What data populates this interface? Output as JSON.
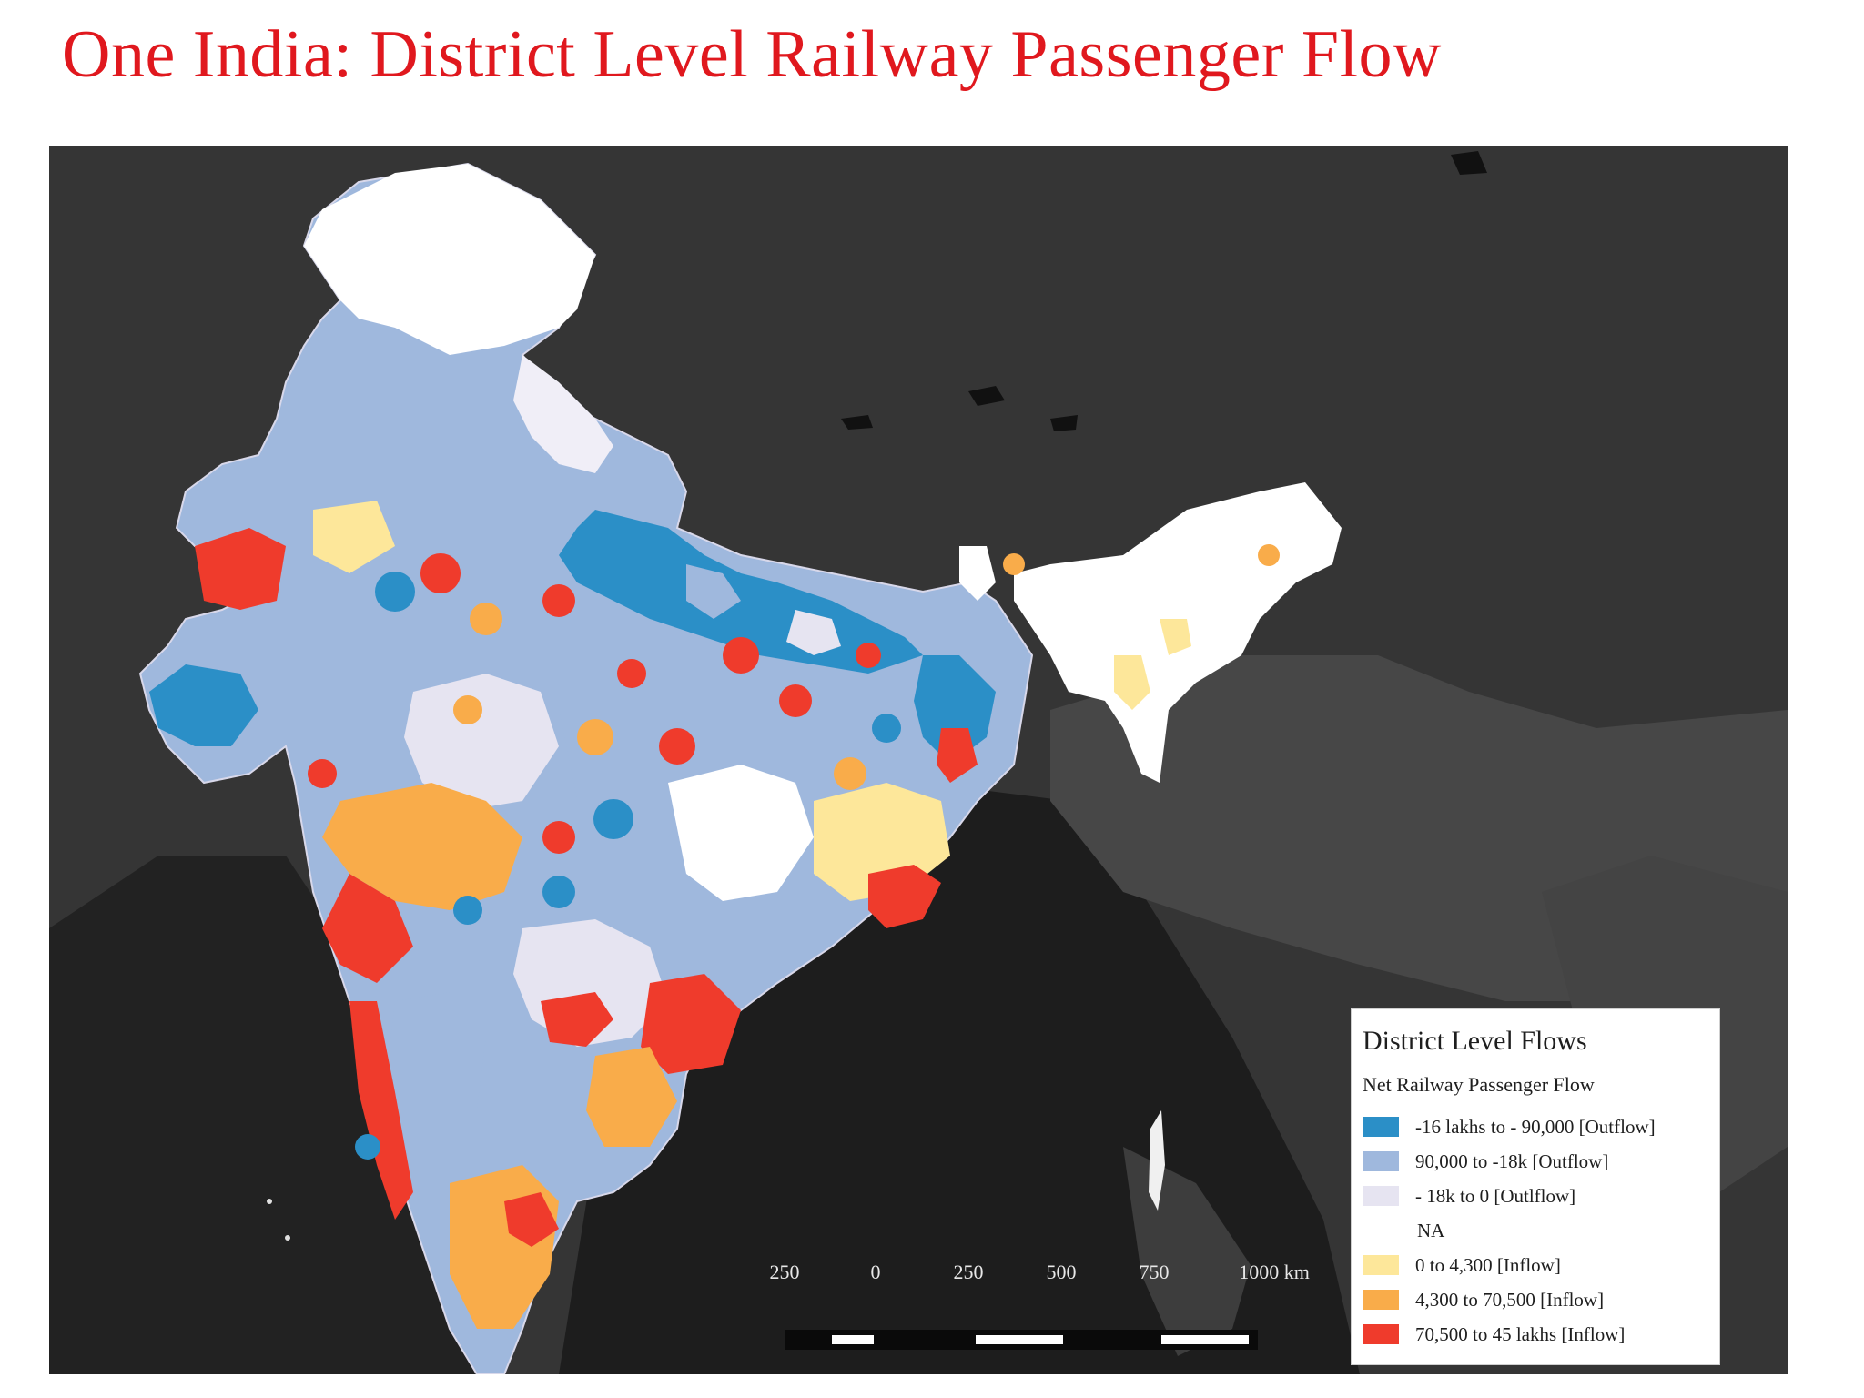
{
  "title": "One India: District Level Railway Passenger Flow",
  "legend": {
    "title": "District Level Flows",
    "subtitle": "Net Railway Passenger Flow",
    "items": [
      {
        "label": "-16 lakhs to - 90,000 [Outflow]",
        "color": "#2b8fc7"
      },
      {
        "label": "90,000 to -18k [Outflow]",
        "color": "#9fb8dd"
      },
      {
        "label": "- 18k to 0 [Outlflow]",
        "color": "#e6e4f1"
      },
      {
        "label": "NA",
        "color": "#ffffff"
      },
      {
        "label": "0 to 4,300 [Inflow]",
        "color": "#fde79a"
      },
      {
        "label": "4,300 to 70,500 [Inflow]",
        "color": "#f9ac4a"
      },
      {
        "label": "70,500 to 45 lakhs [Inflow]",
        "color": "#ef3b2c"
      }
    ]
  },
  "scale": {
    "labels": [
      "250",
      "0",
      "250",
      "500",
      "750",
      "1000 km"
    ]
  },
  "colors": {
    "map_background": "#353535",
    "ocean": "#1f1f1f",
    "neighbor_land": "#444444",
    "title": "#e0181e",
    "na_region": "#ffffff"
  }
}
